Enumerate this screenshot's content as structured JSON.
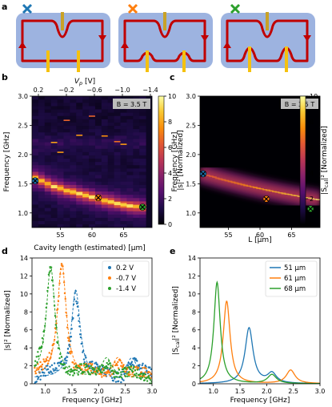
{
  "panel_labels": [
    "a",
    "b",
    "c",
    "d",
    "e"
  ],
  "colors": {
    "device_blue": "#9db3e0",
    "edge_red": "#c00000",
    "gate_orange": "#f5c10f",
    "marker_blue": "#1f77b4",
    "marker_orange": "#ff7f0e",
    "marker_green": "#2ca02c"
  },
  "chart_data": [
    {
      "panel": "a",
      "type": "schematic",
      "markers": [
        "blue-x-icon",
        "orange-x-icon",
        "green-x-icon"
      ],
      "description_states": [
        "single top gate constriction",
        "top and bottom gates, two bumps",
        "top and bottom gates, two bumps"
      ]
    },
    {
      "panel": "b",
      "type": "heatmap",
      "xlabel": "Cavity length (estimated) [µm]",
      "x2label": "V_p [V]",
      "x2_ticks": [
        "0.2",
        "−0.2",
        "−0.6",
        "−1.0",
        "−1.4"
      ],
      "ylabel": "Frequency [GHz]",
      "xlim": [
        50.5,
        69.5
      ],
      "ylim": [
        0.75,
        3.0
      ],
      "xticks": [
        55,
        60,
        65
      ],
      "yticks": [
        1.0,
        1.5,
        2.0,
        2.5,
        3.0
      ],
      "ytick_labels": [
        "1.0",
        "1.5",
        "2.0",
        "2.5",
        "3.0"
      ],
      "badge": "B = 3.5 T",
      "colorbar_label": "|s|² [Normalized]",
      "colorbar_range": [
        0,
        10
      ],
      "colorbar_ticks": [
        0,
        2,
        4,
        6,
        8,
        10
      ],
      "resonance_L": [
        51,
        52,
        53,
        54,
        55,
        56,
        57,
        58,
        59,
        60,
        61,
        62,
        63,
        64,
        65,
        66,
        67,
        68
      ],
      "resonance_f": [
        1.6,
        1.55,
        1.5,
        1.45,
        1.42,
        1.38,
        1.36,
        1.33,
        1.3,
        1.27,
        1.24,
        1.21,
        1.19,
        1.16,
        1.14,
        1.12,
        1.11,
        1.1
      ],
      "markers": [
        {
          "x": 51,
          "y": 1.55,
          "color": "blue"
        },
        {
          "x": 61,
          "y": 1.26,
          "color": "orange"
        },
        {
          "x": 68,
          "y": 1.1,
          "color": "green"
        }
      ]
    },
    {
      "panel": "c",
      "type": "heatmap",
      "xlabel": "L [µm]",
      "ylabel": "Frequency [GHz]",
      "xlim": [
        50.5,
        69.5
      ],
      "ylim": [
        0.75,
        3.0
      ],
      "xticks": [
        55,
        60,
        65
      ],
      "yticks": [
        1.0,
        1.5,
        2.0,
        2.5,
        3.0
      ],
      "ytick_labels": [
        "1.0",
        "1.5",
        "2.0",
        "2.5",
        "3.0"
      ],
      "badge": "B = 3.5 T",
      "colorbar_label": "|S_cal|² [Normalized]",
      "colorbar_range": [
        0,
        10
      ],
      "colorbar_ticks": [
        0,
        2,
        4,
        6,
        8,
        10
      ],
      "markers": [
        {
          "x": 51,
          "y": 1.67,
          "color": "blue"
        },
        {
          "x": 61,
          "y": 1.24,
          "color": "orange"
        },
        {
          "x": 68,
          "y": 1.07,
          "color": "green"
        }
      ]
    },
    {
      "panel": "d",
      "type": "scatter",
      "xlabel": "Frequency [GHz]",
      "ylabel": "|s|² [Normalized]",
      "xlim": [
        0.75,
        3.0
      ],
      "ylim": [
        0,
        14
      ],
      "xticks": [
        1.0,
        1.5,
        2.0,
        2.5,
        3.0
      ],
      "xtick_labels": [
        "1.0",
        "1.5",
        "2.0",
        "2.5",
        "3.0"
      ],
      "yticks": [
        0,
        2,
        4,
        6,
        8,
        10,
        12,
        14
      ],
      "legend": "top-right",
      "series": [
        {
          "name": "0.2 V",
          "color": "#1f77b4",
          "peak_f": 1.57,
          "peak_h": 9.8
        },
        {
          "name": "-0.7 V",
          "color": "#ff7f0e",
          "peak_f": 1.31,
          "peak_h": 12.8
        },
        {
          "name": "-1.4 V",
          "color": "#2ca02c",
          "peak_f": 1.1,
          "peak_h": 12.4
        }
      ]
    },
    {
      "panel": "e",
      "type": "line",
      "xlabel": "Frequency [GHz]",
      "ylabel": "|S_cal|² [Normalized]",
      "xlim": [
        0.75,
        3.0
      ],
      "ylim": [
        0,
        14
      ],
      "xticks": [
        1.0,
        1.5,
        2.0,
        2.5,
        3.0
      ],
      "xtick_labels": [
        "1.0",
        "1.5",
        "2.0",
        "2.5",
        "3.0"
      ],
      "yticks": [
        0,
        2,
        4,
        6,
        8,
        10,
        12,
        14
      ],
      "legend": "top-right",
      "series": [
        {
          "name": "51 µm",
          "color": "#1f77b4",
          "peak_f": 1.67,
          "peak_h": 6.2,
          "second_f": 2.1,
          "second_h": 1.1
        },
        {
          "name": "61 µm",
          "color": "#ff7f0e",
          "peak_f": 1.25,
          "peak_h": 9.2,
          "second_f": 2.45,
          "second_h": 1.5
        },
        {
          "name": "68 µm",
          "color": "#2ca02c",
          "peak_f": 1.07,
          "peak_h": 11.3,
          "second_f": 2.1,
          "second_h": 1.0
        }
      ]
    }
  ],
  "text": {
    "vp_axis_label": "V",
    "vp_axis_sub": "p",
    "vp_axis_unit": " [V]",
    "b_ylabel": "Frequency [GHz]",
    "b_xlabel": "Cavity length (estimated) [µm]",
    "b_cbar_label": "|s|² [Normalized]",
    "c_ylabel": "Frequency [GHz]",
    "c_xlabel": "L [µm]",
    "c_cbar_label_pre": "|S",
    "c_cbar_label_sub": "cal",
    "c_cbar_label_post": "|² [Normalized]",
    "d_ylabel": "|s|² [Normalized]",
    "d_xlabel": "Frequency [GHz]",
    "e_ylabel_pre": "|S",
    "e_ylabel_sub": "cal",
    "e_ylabel_post": "|² [Normalized]",
    "e_xlabel": "Frequency [GHz]",
    "badge": "B = 3.5 T"
  }
}
